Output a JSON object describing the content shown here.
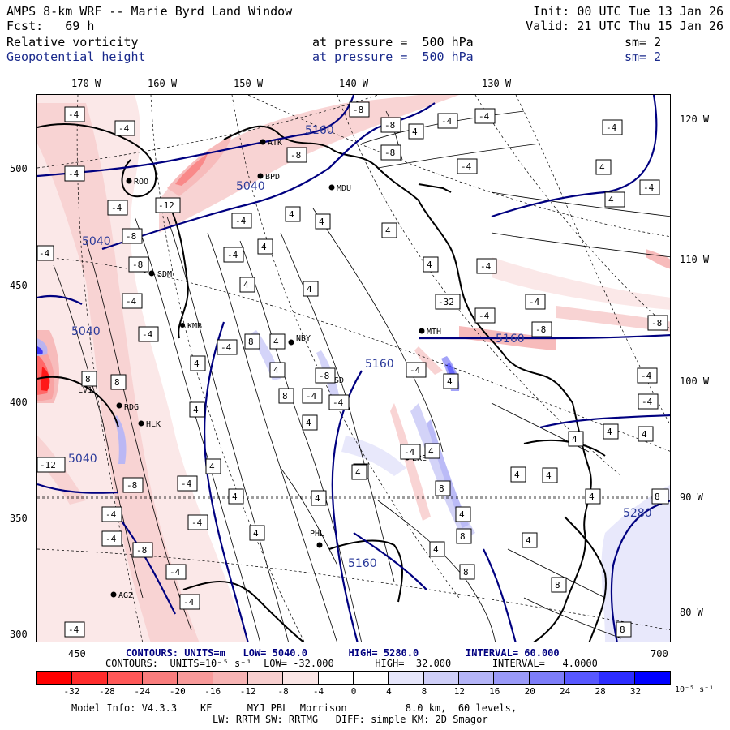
{
  "header": {
    "title": "AMPS 8-km WRF -- Marie Byrd Land Window",
    "init": "Init: 00 UTC Tue 13 Jan 26",
    "fcst": "Fcst:   69 h",
    "valid": "Valid: 21 UTC Thu 15 Jan 26",
    "field1_name": "Relative vorticity",
    "field1_level": "at pressure =  500 hPa",
    "field1_sm": "sm= 2",
    "field2_name": "Geopotential height",
    "field2_level": "at pressure =  500 hPa",
    "field2_sm": "sm= 2"
  },
  "axes": {
    "top_lon": [
      "170 W",
      "160 W",
      "150 W",
      "140 W",
      "130 W"
    ],
    "right_lon": [
      "120 W",
      "110 W",
      "100 W",
      "90 W",
      "80 W"
    ],
    "left_y": [
      "500",
      "450",
      "400",
      "350",
      "300"
    ],
    "bottom_x": [
      "450",
      "700"
    ]
  },
  "stations": [
    "ROO",
    "RDG",
    "HLK",
    "SDM",
    "KMB",
    "LV1",
    "NBY",
    "WSD",
    "MTH",
    "ATK",
    "BPD",
    "MDU",
    "PHL",
    "ERE",
    "AG2"
  ],
  "height_labels": [
    "5040",
    "5040",
    "5040",
    "5040",
    "5160",
    "5160",
    "5160",
    "5160",
    "5280"
  ],
  "footer": {
    "contours_height": "CONTOURS: UNITS=m   LOW= 5040.0       HIGH= 5280.0        INTERVAL= 60.000",
    "contours_vort": "CONTOURS:  UNITS=10⁻⁵ s⁻¹  LOW= -32.000       HIGH=  32.000       INTERVAL=   4.0000",
    "colorbar_ticks": [
      "-32",
      "-28",
      "-24",
      "-20",
      "-16",
      "-12",
      "-8",
      "-4",
      "0",
      "4",
      "8",
      "12",
      "16",
      "20",
      "24",
      "28",
      "32"
    ],
    "colorbar_unit": "10⁻⁵ s⁻¹",
    "colorbar_colors": [
      "#ff0000",
      "#ff2c2c",
      "#ff5858",
      "#f97d7d",
      "#f89a9a",
      "#f7b4b4",
      "#f8cfcf",
      "#fbe6e6",
      "#ffffff",
      "#ffffff",
      "#e6e6fb",
      "#cfcff8",
      "#b4b4f7",
      "#9a9af8",
      "#7d7df9",
      "#5858ff",
      "#2c2cff",
      "#0000ff"
    ],
    "model_info": "Model Info: V4.3.3    KF      MYJ PBL  Morrison          8.0 km,  60 levels,",
    "model_info2": "LW: RRTM SW: RRTMG   DIFF: simple KM: 2D Smagor"
  },
  "colors": {
    "height_contour": "#000080",
    "coast": "#000000"
  }
}
